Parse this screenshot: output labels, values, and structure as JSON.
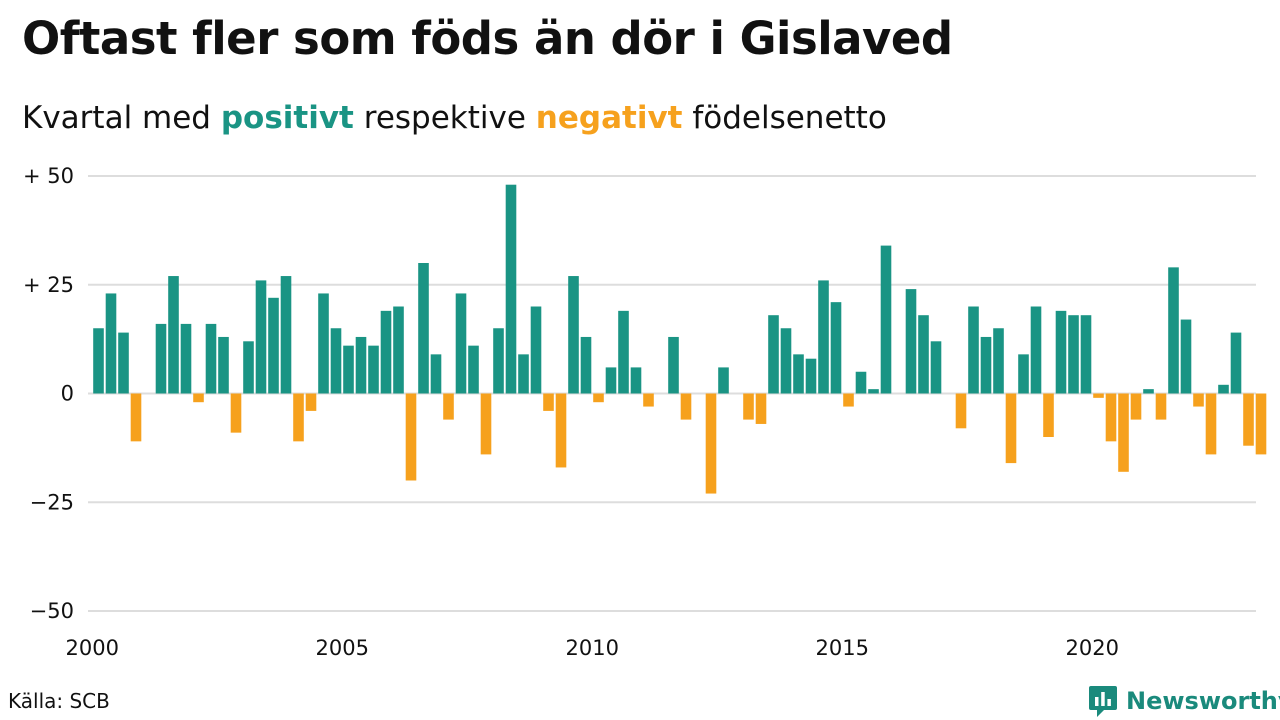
{
  "title": "Oftast fler som föds än dör i Gislaved",
  "subtitle": {
    "prefix": "Kvartal med",
    "positive": "positivt",
    "middle": "respektive",
    "negative": "negativt",
    "suffix": "födelsenetto"
  },
  "source": "Källa: SCB",
  "brand": "Newsworthy",
  "colors": {
    "positive": "#1a9484",
    "negative": "#f6a11d",
    "grid": "#dddddd",
    "brand": "#1a8a7c"
  },
  "chart_data": {
    "type": "bar",
    "ylim": [
      -50,
      50
    ],
    "yticks": [
      {
        "value": 50,
        "label": "+ 50"
      },
      {
        "value": 25,
        "label": "+ 25"
      },
      {
        "value": 0,
        "label": "0"
      },
      {
        "value": -25,
        "label": "−25"
      },
      {
        "value": -50,
        "label": "−50"
      }
    ],
    "xticks": [
      "2000",
      "2005",
      "2010",
      "2015",
      "2020"
    ],
    "first_period": "2000 Q1",
    "grid": true,
    "values": [
      15,
      23,
      14,
      -11,
      0,
      16,
      27,
      16,
      -2,
      16,
      13,
      -9,
      12,
      26,
      22,
      27,
      -11,
      -4,
      23,
      15,
      11,
      13,
      11,
      19,
      20,
      -20,
      30,
      9,
      -6,
      23,
      11,
      -14,
      15,
      48,
      9,
      20,
      -4,
      -17,
      27,
      13,
      -2,
      6,
      19,
      6,
      -3,
      0,
      13,
      -6,
      0,
      -23,
      6,
      0,
      -6,
      -7,
      18,
      15,
      9,
      8,
      26,
      21,
      -3,
      5,
      1,
      34,
      0,
      24,
      18,
      12,
      0,
      -8,
      20,
      13,
      15,
      -16,
      9,
      20,
      -10,
      19,
      18,
      18,
      -1,
      -11,
      -18,
      -6,
      1,
      -6,
      29,
      17,
      -3,
      -14,
      2,
      14,
      -12,
      -14
    ]
  }
}
